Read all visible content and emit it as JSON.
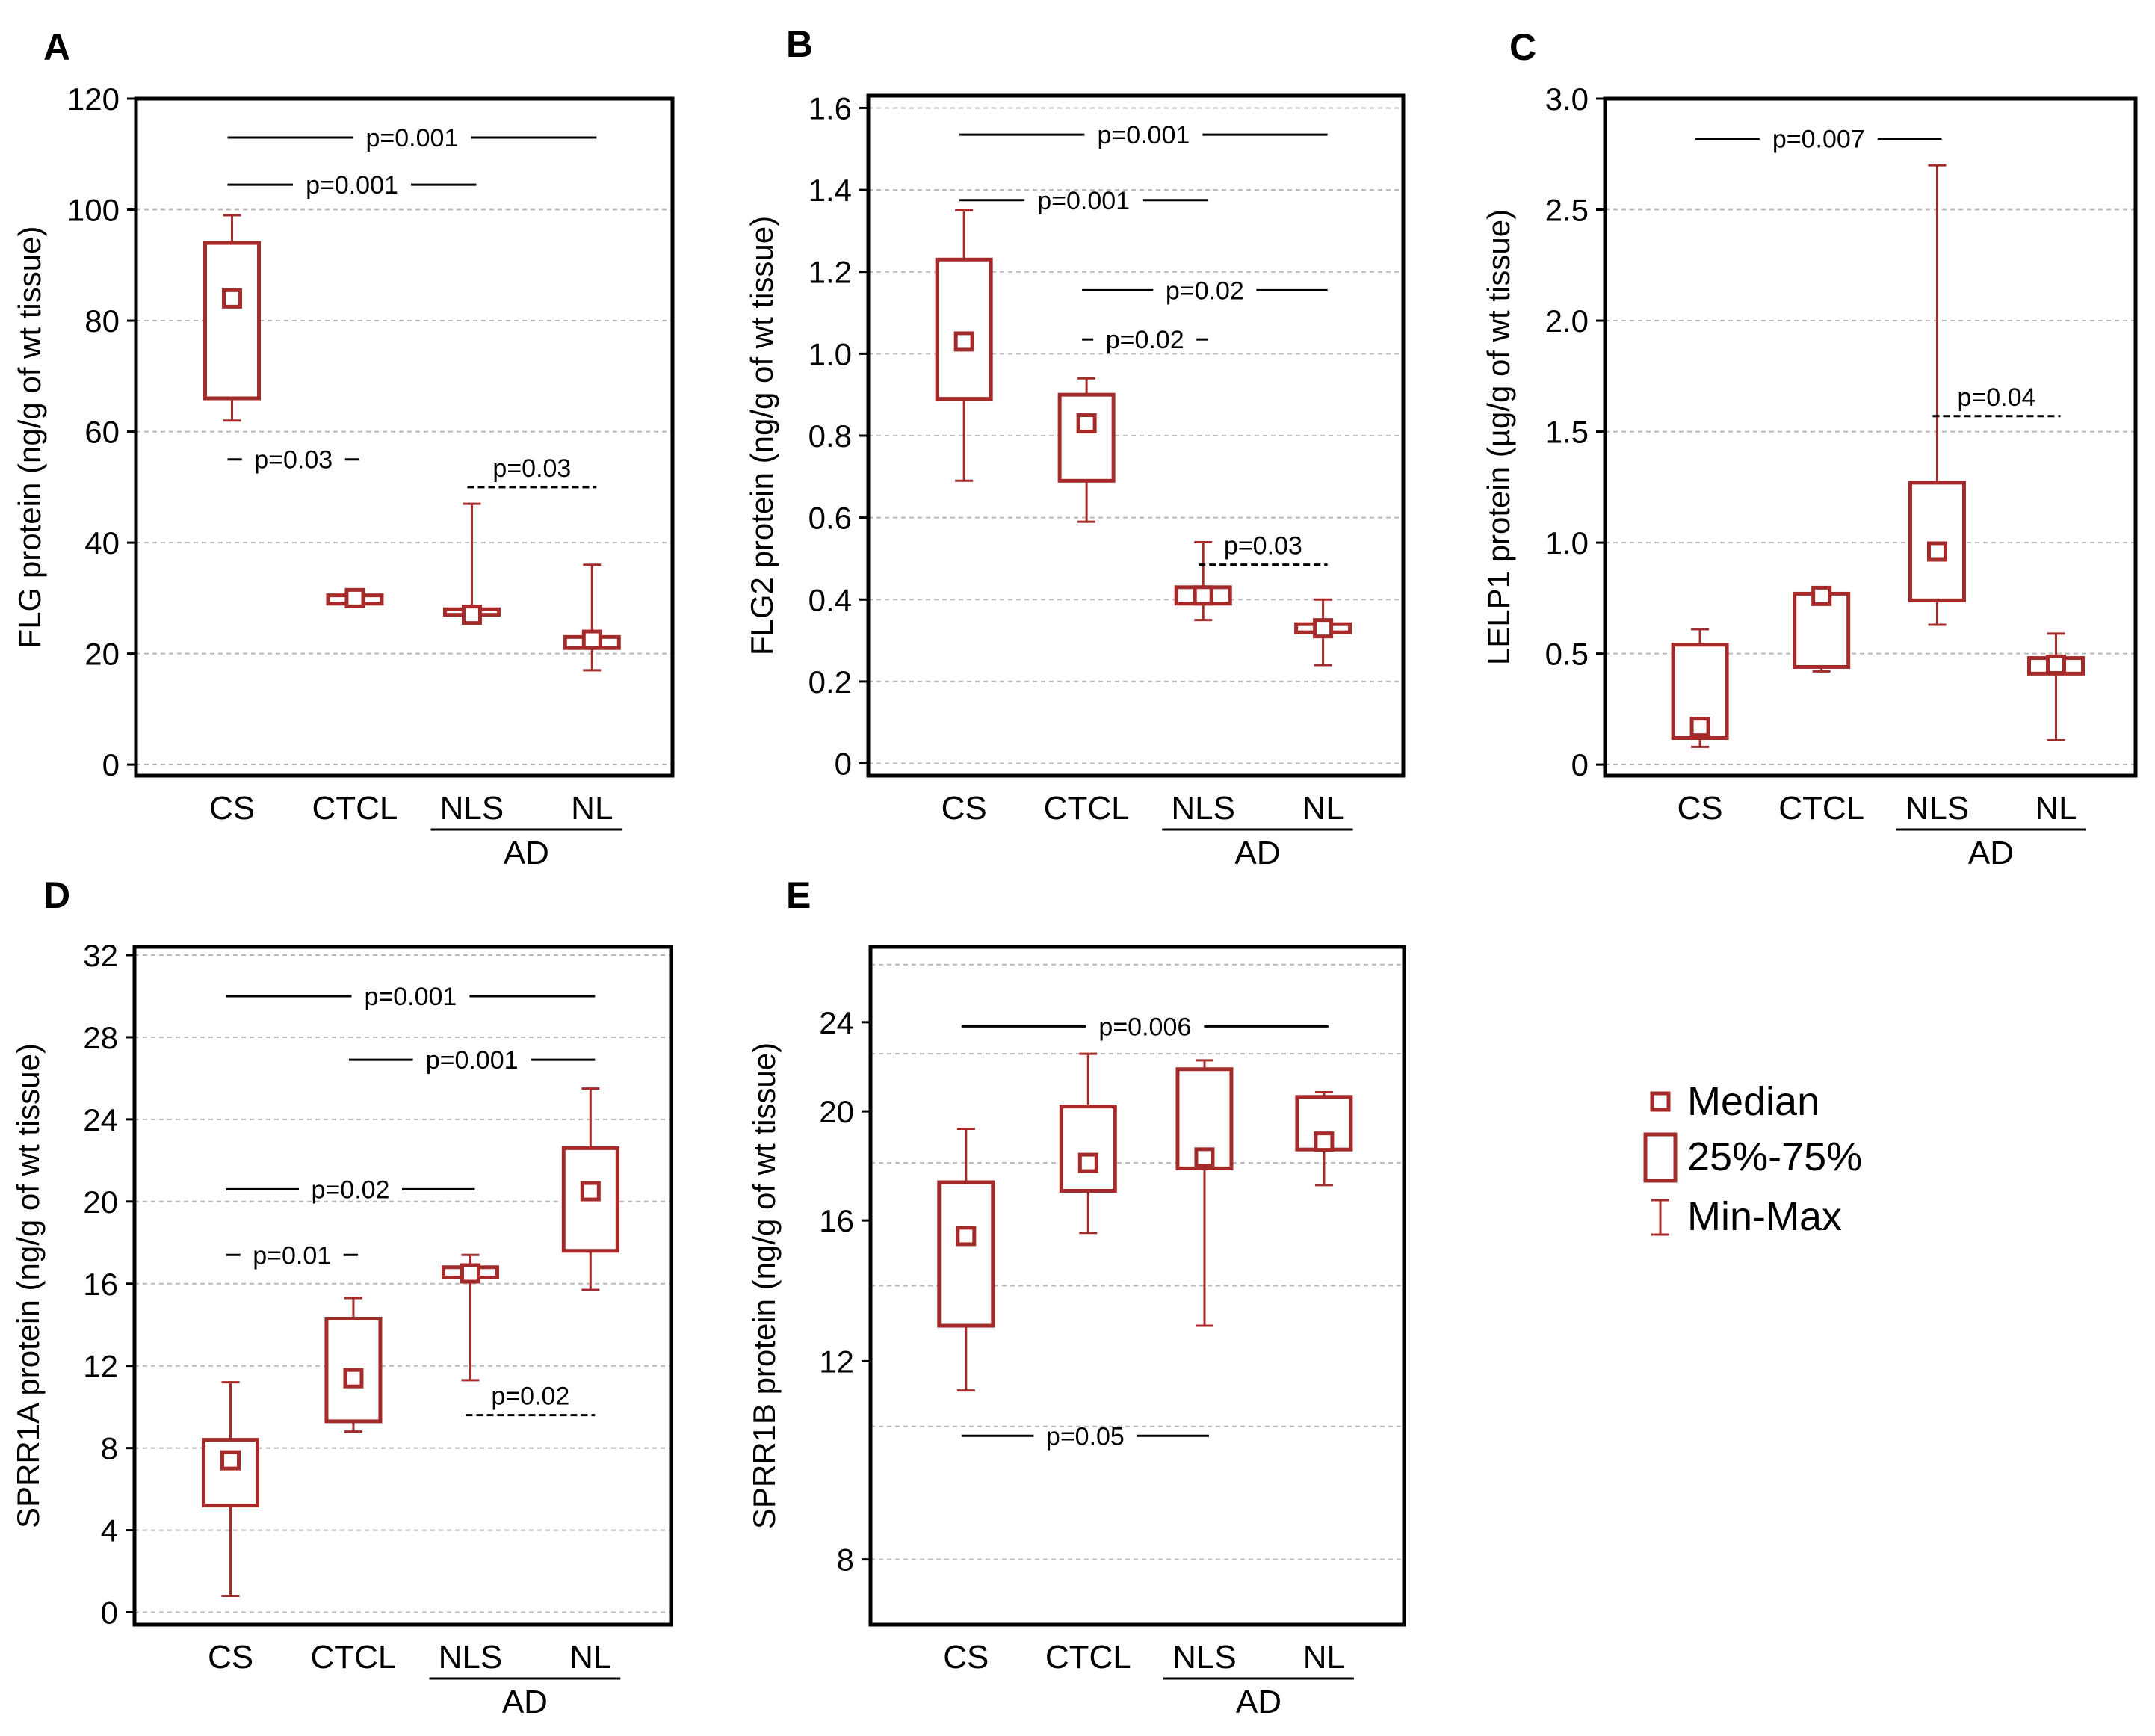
{
  "colors": {
    "box": "#a52a2a",
    "grid": "#b8b8b8",
    "axis": "#000000",
    "text": "#000000"
  },
  "legend": {
    "median_label": "Median",
    "iqr_label": "25%-75%",
    "range_label": "Min-Max"
  },
  "chart_data": [
    {
      "panel": "A",
      "type": "box",
      "ylabel": "FLG protein (ng/g of wt tissue)",
      "ylim": [
        -2,
        120
      ],
      "yticks": [
        0,
        20,
        40,
        60,
        80,
        100,
        120
      ],
      "yscale": "linear",
      "categories": [
        "CS",
        "CTCL",
        "NLS",
        "NL"
      ],
      "group_label": "AD",
      "group_members": [
        "NLS",
        "NL"
      ],
      "boxes": [
        {
          "category": "CS",
          "min": 62,
          "q1": 66,
          "median": 84,
          "q3": 94,
          "max": 99
        },
        {
          "category": "CTCL",
          "min": 29,
          "q1": 29,
          "median": 30,
          "q3": 30.5,
          "max": 31
        },
        {
          "category": "NLS",
          "min": 27,
          "q1": 27,
          "median": 27,
          "q3": 28,
          "max": 47
        },
        {
          "category": "NL",
          "min": 17,
          "q1": 21,
          "median": 22.5,
          "q3": 23,
          "max": 36
        }
      ],
      "comparisons": [
        {
          "from": "CS",
          "to": "NL",
          "label": "p=0.001",
          "y": 113,
          "style": "solid"
        },
        {
          "from": "CS",
          "to": "NLS",
          "label": "p=0.001",
          "y": 104.5,
          "style": "solid"
        },
        {
          "from": "CS",
          "to": "CTCL",
          "label": "p=0.03",
          "y": 55,
          "style": "solid"
        },
        {
          "from": "NLS",
          "to": "NL",
          "label": "p=0.03",
          "y": 50,
          "style": "dashed"
        }
      ]
    },
    {
      "panel": "B",
      "type": "box",
      "ylabel": "FLG2 protein (ng/g of wt tissue)",
      "ylim": [
        -0.03,
        1.63
      ],
      "yticks": [
        0,
        0.2,
        0.4,
        0.6,
        0.8,
        1.0,
        1.2,
        1.4,
        1.6
      ],
      "ytick_labels": [
        "0",
        "0.2",
        "0.4",
        "0.6",
        "0.8",
        "1.0",
        "1.2",
        "1.4",
        "1.6"
      ],
      "yscale": "linear",
      "categories": [
        "CS",
        "CTCL",
        "NLS",
        "NL"
      ],
      "group_label": "AD",
      "group_members": [
        "NLS",
        "NL"
      ],
      "boxes": [
        {
          "category": "CS",
          "min": 0.69,
          "q1": 0.89,
          "median": 1.03,
          "q3": 1.23,
          "max": 1.35
        },
        {
          "category": "CTCL",
          "min": 0.59,
          "q1": 0.69,
          "median": 0.83,
          "q3": 0.9,
          "max": 0.94
        },
        {
          "category": "NLS",
          "min": 0.35,
          "q1": 0.39,
          "median": 0.41,
          "q3": 0.43,
          "max": 0.54
        },
        {
          "category": "NL",
          "min": 0.24,
          "q1": 0.32,
          "median": 0.33,
          "q3": 0.34,
          "max": 0.4
        }
      ],
      "comparisons": [
        {
          "from": "CS",
          "to": "NL",
          "label": "p=0.001",
          "y": 1.535,
          "style": "solid"
        },
        {
          "from": "CS",
          "to": "NLS",
          "label": "p=0.001",
          "y": 1.375,
          "style": "solid"
        },
        {
          "from": "CTCL",
          "to": "NL",
          "label": "p=0.02",
          "y": 1.155,
          "style": "solid"
        },
        {
          "from": "CTCL",
          "to": "NLS",
          "label": "p=0.02",
          "y": 1.035,
          "style": "solid"
        },
        {
          "from": "NLS",
          "to": "NL",
          "label": "p=0.03",
          "y": 0.485,
          "style": "dashed"
        }
      ]
    },
    {
      "panel": "C",
      "type": "box",
      "ylabel": "LELP1 protein (µg/g of wt tissue)",
      "ylim": [
        -0.05,
        3.0
      ],
      "yticks": [
        0,
        0.5,
        1.0,
        1.5,
        2.0,
        2.5,
        3.0
      ],
      "ytick_labels": [
        "0",
        "0.5",
        "1.0",
        "1.5",
        "2.0",
        "2.5",
        "3.0"
      ],
      "yscale": "linear",
      "categories": [
        "CS",
        "CTCL",
        "NLS",
        "NL"
      ],
      "group_label": "AD",
      "group_members": [
        "NLS",
        "NL"
      ],
      "boxes": [
        {
          "category": "CS",
          "min": 0.08,
          "q1": 0.12,
          "median": 0.17,
          "q3": 0.54,
          "max": 0.61
        },
        {
          "category": "CTCL",
          "min": 0.42,
          "q1": 0.44,
          "median": 0.76,
          "q3": 0.77,
          "max": 0.8
        },
        {
          "category": "NLS",
          "min": 0.63,
          "q1": 0.74,
          "median": 0.96,
          "q3": 1.27,
          "max": 2.7
        },
        {
          "category": "NL",
          "min": 0.11,
          "q1": 0.41,
          "median": 0.45,
          "q3": 0.48,
          "max": 0.59
        }
      ],
      "comparisons": [
        {
          "from": "CS",
          "to": "NLS",
          "label": "p=0.007",
          "y": 2.82,
          "style": "solid"
        },
        {
          "from": "NLS",
          "to": "NL",
          "label": "p=0.04",
          "y": 1.57,
          "style": "dashed"
        }
      ]
    },
    {
      "panel": "D",
      "type": "box",
      "ylabel": "SPRR1A protein (ng/g of wt tissue)",
      "ylim": [
        -0.6,
        32.4
      ],
      "yticks": [
        0,
        4,
        8,
        12,
        16,
        20,
        24,
        28,
        32
      ],
      "yscale": "linear",
      "categories": [
        "CS",
        "CTCL",
        "NLS",
        "NL"
      ],
      "group_label": "AD",
      "group_members": [
        "NLS",
        "NL"
      ],
      "boxes": [
        {
          "category": "CS",
          "min": 0.8,
          "q1": 5.2,
          "median": 7.4,
          "q3": 8.4,
          "max": 11.2
        },
        {
          "category": "CTCL",
          "min": 8.8,
          "q1": 9.3,
          "median": 11.4,
          "q3": 14.3,
          "max": 15.3
        },
        {
          "category": "NLS",
          "min": 11.3,
          "q1": 16.3,
          "median": 16.5,
          "q3": 16.8,
          "max": 17.4
        },
        {
          "category": "NL",
          "min": 15.7,
          "q1": 17.6,
          "median": 20.5,
          "q3": 22.6,
          "max": 25.5
        }
      ],
      "comparisons": [
        {
          "from": "CS",
          "to": "NL",
          "label": "p=0.001",
          "y": 30,
          "style": "solid"
        },
        {
          "from": "CTCL",
          "to": "NL",
          "label": "p=0.001",
          "y": 26.9,
          "style": "solid"
        },
        {
          "from": "CS",
          "to": "NLS",
          "label": "p=0.02",
          "y": 20.6,
          "style": "solid"
        },
        {
          "from": "CS",
          "to": "CTCL",
          "label": "p=0.01",
          "y": 17.4,
          "style": "solid"
        },
        {
          "from": "NLS",
          "to": "NL",
          "label": "p=0.02",
          "y": 9.6,
          "style": "dashed"
        }
      ]
    },
    {
      "panel": "E",
      "type": "box",
      "ylabel": "SPRR1B protein (ng/g of wt tissue)",
      "ylim": [
        7,
        28
      ],
      "yscale": "log",
      "yticks": [
        8,
        12,
        16,
        20,
        24
      ],
      "gridlines": [
        8,
        10.5,
        14,
        18,
        22.5,
        27
      ],
      "categories": [
        "CS",
        "CTCL",
        "NLS",
        "NL"
      ],
      "group_label": "AD",
      "group_members": [
        "NLS",
        "NL"
      ],
      "boxes": [
        {
          "category": "CS",
          "min": 11.3,
          "q1": 12.9,
          "median": 15.5,
          "q3": 17.3,
          "max": 19.3
        },
        {
          "category": "CTCL",
          "min": 15.6,
          "q1": 17.0,
          "median": 18.0,
          "q3": 20.2,
          "max": 22.5
        },
        {
          "category": "NLS",
          "min": 12.9,
          "q1": 17.8,
          "median": 18.2,
          "q3": 21.8,
          "max": 22.2
        },
        {
          "category": "NL",
          "min": 17.2,
          "q1": 18.5,
          "median": 18.8,
          "q3": 20.6,
          "max": 20.8
        }
      ],
      "comparisons": [
        {
          "from": "CS",
          "to": "NL",
          "label": "p=0.006",
          "y": 23.8,
          "style": "solid"
        },
        {
          "from": "CS",
          "to": "NLS",
          "label": "p=0.05",
          "y": 10.3,
          "style": "solid"
        }
      ]
    }
  ]
}
